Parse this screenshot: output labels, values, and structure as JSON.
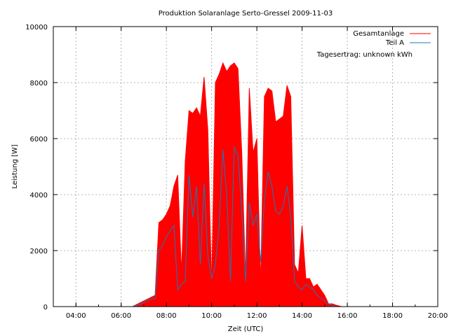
{
  "chart_data": {
    "type": "area",
    "title": "Produktion Solaranlage Serto-Gressel 2009-11-03",
    "xlabel": "Zeit (UTC)",
    "ylabel": "Leistung [W]",
    "xlim": [
      "03:00",
      "20:00"
    ],
    "ylim": [
      0,
      10000
    ],
    "x_ticks": [
      "04:00",
      "06:00",
      "08:00",
      "10:00",
      "12:00",
      "14:00",
      "16:00",
      "18:00",
      "20:00"
    ],
    "y_ticks": [
      "0",
      "2000",
      "4000",
      "6000",
      "8000",
      "10000"
    ],
    "grid": true,
    "legend_position": "top-right",
    "annotation": "Tagesertrag: unknown kWh",
    "series": [
      {
        "name": "Gesamtanlage",
        "color": "#ff0000",
        "style": "filled spikes",
        "x": [
          "06:30",
          "06:45",
          "07:00",
          "07:15",
          "07:30",
          "07:40",
          "07:50",
          "08:00",
          "08:10",
          "08:20",
          "08:30",
          "08:40",
          "08:50",
          "09:00",
          "09:10",
          "09:20",
          "09:30",
          "09:40",
          "09:50",
          "10:00",
          "10:10",
          "10:20",
          "10:30",
          "10:40",
          "10:50",
          "11:00",
          "11:10",
          "11:20",
          "11:30",
          "11:40",
          "11:50",
          "12:00",
          "12:10",
          "12:20",
          "12:30",
          "12:40",
          "12:50",
          "13:00",
          "13:10",
          "13:20",
          "13:30",
          "13:40",
          "13:50",
          "14:00",
          "14:10",
          "14:20",
          "14:30",
          "14:40",
          "14:50",
          "15:00",
          "15:10",
          "15:20",
          "15:30",
          "15:45",
          "16:00"
        ],
        "values": [
          0,
          100,
          200,
          300,
          400,
          3000,
          3100,
          3300,
          3600,
          4300,
          4700,
          1200,
          5200,
          7000,
          6900,
          7100,
          6800,
          8200,
          6300,
          700,
          8000,
          8300,
          8700,
          8400,
          8600,
          8700,
          8500,
          5500,
          1000,
          7800,
          5500,
          6000,
          800,
          7500,
          7800,
          7700,
          6600,
          6700,
          6800,
          7900,
          7500,
          1500,
          1200,
          2900,
          1000,
          1000,
          700,
          800,
          600,
          400,
          100,
          100,
          50,
          0,
          0
        ]
      },
      {
        "name": "Teil A",
        "color": "#1f78b4",
        "x": [
          "06:30",
          "06:45",
          "07:00",
          "07:15",
          "07:30",
          "07:40",
          "07:50",
          "08:00",
          "08:10",
          "08:20",
          "08:30",
          "08:40",
          "08:50",
          "09:00",
          "09:10",
          "09:20",
          "09:30",
          "09:40",
          "09:50",
          "10:00",
          "10:10",
          "10:20",
          "10:30",
          "10:40",
          "10:50",
          "11:00",
          "11:10",
          "11:20",
          "11:30",
          "11:40",
          "11:50",
          "12:00",
          "12:10",
          "12:20",
          "12:30",
          "12:40",
          "12:50",
          "13:00",
          "13:10",
          "13:20",
          "13:30",
          "13:40",
          "13:50",
          "14:00",
          "14:10",
          "14:20",
          "14:30",
          "14:40",
          "14:50",
          "15:00",
          "15:10",
          "15:20",
          "15:30",
          "15:45",
          "16:00"
        ],
        "values": [
          0,
          50,
          150,
          250,
          300,
          2000,
          2200,
          2500,
          2700,
          2900,
          600,
          800,
          900,
          4700,
          3200,
          4300,
          1500,
          4400,
          1800,
          1000,
          1500,
          2900,
          5600,
          4000,
          900,
          5700,
          5400,
          3400,
          900,
          3700,
          2900,
          3300,
          1600,
          3800,
          4800,
          4300,
          3400,
          3300,
          3600,
          4300,
          3200,
          900,
          700,
          600,
          800,
          700,
          600,
          400,
          300,
          200,
          100,
          50,
          0,
          0,
          0
        ]
      }
    ]
  }
}
